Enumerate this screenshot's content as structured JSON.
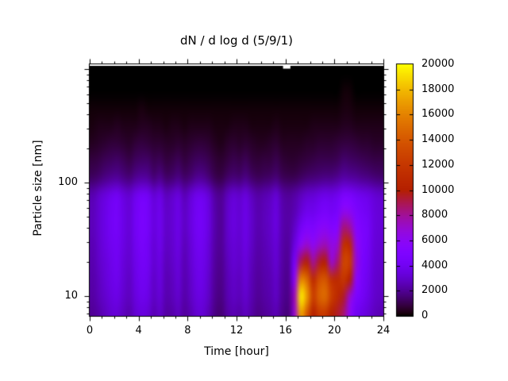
{
  "title": "dN / d log d (5/9/1)",
  "axes": {
    "x": {
      "label": "Time [hour]",
      "min": 0,
      "max": 24,
      "tick_values": [
        0,
        4,
        8,
        12,
        16,
        20,
        24
      ],
      "tick_labels": [
        "0",
        "4",
        "8",
        "12",
        "16",
        "20",
        "24"
      ],
      "minor_tick_step_hours": 1
    },
    "y": {
      "label": "Particle size [nm]",
      "scale": "log",
      "min": 6.7,
      "max": 1100,
      "tick_values": [
        10,
        100
      ],
      "tick_labels": [
        "10",
        "100"
      ]
    },
    "colorbar": {
      "min": 0,
      "max": 20000,
      "tick_values": [
        0,
        2000,
        4000,
        6000,
        8000,
        10000,
        12000,
        14000,
        16000,
        18000,
        20000
      ],
      "tick_labels": [
        "0",
        "2000",
        "4000",
        "6000",
        "8000",
        "10000",
        "12000",
        "14000",
        "16000",
        "18000",
        "20000"
      ],
      "palette": "gnuplot rgbformulae 7,5,15 (black-purple-violet-magenta-red-orange-yellow)",
      "palette_hex_samples": {
        "0": "#000000",
        "5000": "#8004ff",
        "10000": "#b42000",
        "15000": "#dc6400",
        "20000": "#ffff00"
      }
    }
  },
  "colors": {
    "background": "#ffffff",
    "axis": "#000000",
    "text": "#000000"
  },
  "chart_data": {
    "type": "heatmap",
    "title": "dN / d log d (5/9/1)",
    "xlabel": "Time [hour]",
    "ylabel": "Particle size [nm]",
    "zlabel": "dN / d log d",
    "x_range_hours": [
      0,
      24
    ],
    "y_range_nm": [
      6.7,
      1100
    ],
    "z_range": [
      0,
      20000
    ],
    "grid": false,
    "legend_position": "colorbar-right",
    "x_hours": [
      0.25,
      0.75,
      1.25,
      1.75,
      2.25,
      2.75,
      3.25,
      3.75,
      4.25,
      4.75,
      5.25,
      5.75,
      6.25,
      6.75,
      7.25,
      7.75,
      8.25,
      8.75,
      9.25,
      9.75,
      10.25,
      10.75,
      11.25,
      11.75,
      12.25,
      12.75,
      13.25,
      13.75,
      14.25,
      14.75,
      15.25,
      15.75,
      16.25,
      16.75,
      17.25,
      17.75,
      18.25,
      18.75,
      19.25,
      19.75,
      20.25,
      20.75,
      21.25,
      21.75,
      22.25,
      22.75,
      23.25,
      23.75
    ],
    "size_bins_nm": [
      7,
      9.9,
      14,
      19.8,
      28,
      39.6,
      56,
      79,
      112,
      158,
      224,
      317,
      448,
      634,
      896
    ],
    "rows_order": "size ascending (first row = smallest particles, bottom of plot)",
    "values": [
      [
        2000,
        2300,
        2700,
        3100,
        3200,
        2700,
        2400,
        3100,
        3400,
        3200,
        2500,
        2900,
        2200,
        2300,
        2700,
        2100,
        2500,
        3100,
        3100,
        2500,
        1700,
        1500,
        2200,
        2500,
        2300,
        2700,
        2200,
        1800,
        2000,
        2200,
        2500,
        1800,
        1600,
        7000,
        17000,
        14000,
        10000,
        12000,
        12000,
        10000,
        9500,
        8500,
        6000,
        4000,
        3600,
        3200,
        2700,
        2500
      ],
      [
        2200,
        2600,
        3000,
        3400,
        3600,
        3000,
        2700,
        3400,
        3800,
        3600,
        2800,
        3200,
        2400,
        2600,
        3000,
        2300,
        2800,
        3400,
        3400,
        2800,
        1900,
        1700,
        2400,
        2800,
        2600,
        3000,
        2400,
        2000,
        2200,
        2400,
        2800,
        2000,
        1800,
        7500,
        19500,
        17000,
        12500,
        14500,
        15000,
        12500,
        11000,
        9500,
        7000,
        4800,
        4200,
        3600,
        3000,
        2800
      ],
      [
        2300,
        2700,
        3200,
        3600,
        3800,
        3200,
        2800,
        3600,
        4000,
        3800,
        2900,
        3400,
        2500,
        2700,
        3200,
        2400,
        2900,
        3600,
        3600,
        2900,
        2000,
        1800,
        2500,
        2900,
        2700,
        3200,
        2500,
        2100,
        2300,
        2500,
        2900,
        2100,
        1900,
        6000,
        16000,
        15000,
        11000,
        13500,
        14000,
        11500,
        11000,
        12000,
        10000,
        6000,
        4400,
        3800,
        3100,
        2900
      ],
      [
        2400,
        2900,
        3300,
        3700,
        4000,
        3300,
        3000,
        3700,
        4200,
        4000,
        3100,
        3500,
        2600,
        2900,
        3300,
        2500,
        3100,
        3700,
        3700,
        3100,
        2100,
        1900,
        2600,
        3100,
        2900,
        3300,
        2600,
        2200,
        2400,
        2600,
        3100,
        2200,
        2000,
        4500,
        9000,
        10000,
        8000,
        9500,
        10000,
        7000,
        8500,
        13000,
        12500,
        7000,
        4600,
        4000,
        3200,
        3000
      ],
      [
        2500,
        3000,
        3500,
        3900,
        4100,
        3500,
        3100,
        3900,
        4400,
        4100,
        3200,
        3700,
        2800,
        3000,
        3500,
        2600,
        3200,
        3900,
        3900,
        3200,
        2200,
        2000,
        2800,
        3200,
        3000,
        3500,
        2800,
        2300,
        2500,
        2800,
        3200,
        2300,
        2100,
        3500,
        6000,
        7000,
        6000,
        7000,
        7500,
        6500,
        7000,
        11500,
        11000,
        6500,
        4800,
        4200,
        3300,
        3100
      ],
      [
        2600,
        3100,
        3600,
        4100,
        4300,
        3600,
        3200,
        4100,
        4600,
        4300,
        3400,
        3800,
        2900,
        3100,
        3600,
        2800,
        3400,
        4100,
        4100,
        3400,
        2300,
        2000,
        2900,
        3400,
        3100,
        3600,
        2900,
        2400,
        2600,
        2900,
        3400,
        2400,
        2200,
        2900,
        4200,
        5000,
        4800,
        5500,
        5800,
        5200,
        5500,
        8500,
        8000,
        5500,
        4700,
        4300,
        3400,
        3200
      ],
      [
        2600,
        3100,
        3600,
        4100,
        4300,
        3600,
        3200,
        4100,
        4600,
        4300,
        3400,
        3800,
        2900,
        3100,
        3600,
        2800,
        3400,
        4100,
        4100,
        3400,
        2300,
        2000,
        2900,
        3400,
        3100,
        3600,
        2900,
        2400,
        2600,
        2900,
        3400,
        2400,
        2200,
        2500,
        3200,
        3800,
        3800,
        4200,
        4500,
        4200,
        4500,
        6000,
        5800,
        4800,
        4300,
        4000,
        3400,
        3200
      ],
      [
        2400,
        2900,
        3300,
        3700,
        4000,
        3300,
        3000,
        3700,
        4200,
        4000,
        3100,
        3500,
        2600,
        2900,
        3300,
        2500,
        3100,
        3700,
        3700,
        3100,
        2100,
        1900,
        2600,
        3100,
        2900,
        3300,
        2600,
        2200,
        2400,
        2600,
        3100,
        2200,
        2000,
        2200,
        2600,
        3000,
        3100,
        3400,
        3600,
        3500,
        3800,
        4600,
        4500,
        4000,
        3700,
        3500,
        3100,
        2900
      ],
      [
        1200,
        1400,
        1700,
        1900,
        2000,
        1700,
        1500,
        1900,
        2100,
        2000,
        1500,
        1800,
        1300,
        1400,
        1700,
        1300,
        1500,
        1900,
        1900,
        1500,
        1000,
        900,
        1300,
        1500,
        1400,
        1700,
        1300,
        1100,
        1200,
        1300,
        1500,
        1100,
        1000,
        1000,
        1200,
        1400,
        1500,
        1600,
        1700,
        1700,
        1900,
        2200,
        2100,
        2000,
        1800,
        1700,
        1500,
        1400
      ],
      [
        800,
        900,
        1100,
        1200,
        1300,
        1100,
        900,
        1200,
        1300,
        1300,
        1000,
        1100,
        800,
        900,
        1100,
        800,
        1000,
        1200,
        1200,
        1000,
        700,
        600,
        800,
        1000,
        900,
        1100,
        800,
        700,
        800,
        800,
        1000,
        700,
        600,
        600,
        700,
        800,
        900,
        1000,
        1000,
        1000,
        1100,
        1400,
        1300,
        1200,
        1100,
        1000,
        900,
        900
      ],
      [
        400,
        500,
        600,
        700,
        700,
        600,
        500,
        700,
        800,
        700,
        600,
        600,
        500,
        500,
        600,
        500,
        600,
        700,
        700,
        600,
        400,
        300,
        500,
        600,
        500,
        600,
        500,
        400,
        400,
        500,
        600,
        400,
        400,
        400,
        400,
        500,
        500,
        600,
        600,
        600,
        700,
        800,
        800,
        700,
        600,
        600,
        500,
        500
      ],
      [
        200,
        300,
        300,
        300,
        400,
        300,
        300,
        300,
        400,
        400,
        300,
        300,
        200,
        300,
        300,
        200,
        300,
        300,
        300,
        300,
        200,
        200,
        200,
        300,
        300,
        300,
        200,
        200,
        200,
        200,
        300,
        200,
        200,
        200,
        200,
        200,
        300,
        300,
        300,
        300,
        300,
        400,
        400,
        300,
        300,
        300,
        300,
        300
      ],
      [
        100,
        100,
        100,
        100,
        100,
        100,
        100,
        100,
        200,
        100,
        100,
        100,
        100,
        100,
        100,
        100,
        100,
        100,
        100,
        100,
        100,
        100,
        100,
        100,
        100,
        100,
        100,
        100,
        100,
        100,
        100,
        100,
        100,
        100,
        100,
        100,
        100,
        100,
        100,
        100,
        100,
        200,
        200,
        100,
        100,
        100,
        100,
        100
      ],
      [
        0,
        0,
        0,
        0,
        0,
        0,
        0,
        0,
        0,
        0,
        0,
        0,
        0,
        0,
        0,
        0,
        0,
        0,
        0,
        0,
        0,
        0,
        0,
        0,
        0,
        0,
        0,
        0,
        0,
        0,
        0,
        0,
        0,
        0,
        0,
        0,
        0,
        0,
        0,
        0,
        0,
        100,
        100,
        0,
        0,
        0,
        0,
        0
      ],
      [
        0,
        0,
        0,
        0,
        0,
        0,
        0,
        0,
        0,
        0,
        0,
        0,
        0,
        0,
        0,
        0,
        0,
        0,
        0,
        0,
        0,
        0,
        0,
        0,
        0,
        0,
        0,
        0,
        0,
        0,
        0,
        0,
        0,
        0,
        0,
        0,
        0,
        0,
        0,
        0,
        0,
        0,
        0,
        0,
        0,
        0,
        0,
        0
      ]
    ],
    "missing_data": {
      "time_range_hours": [
        15.8,
        16.4
      ],
      "location": "top edge, largest size bins",
      "shown_as": "white gap"
    },
    "annotations": [
      "nucleation event: bright yellow maximum ~19500 at ~17.2 h, ~10 nm",
      "second orange maximum ~15000 at ~19 h, ~10-14 nm",
      "grown mode ~13000 at ~21 h, ~15-30 nm"
    ]
  }
}
